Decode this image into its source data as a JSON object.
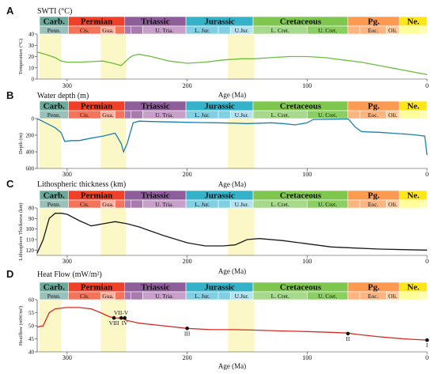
{
  "colors": {
    "carb": "#67a99a",
    "carb_sub": "#99c1b9",
    "perm": "#f04028",
    "perm_sub": "#f3745a",
    "perm_sub2": "#f9b4a3",
    "tria": "#8e5e9b",
    "tria_sub": "#c89fc9",
    "tria_sub2": "#a87aae",
    "jura": "#34b2c9",
    "jura_sub": "#80cfe2",
    "jura_sub2": "#b6e2ef",
    "cret": "#7fc64e",
    "cret_sub": "#a6d98b",
    "cret_sub2": "#8bce61",
    "pg": "#fd9a52",
    "pg_sub": "#fdb47e",
    "pg_sub2": "#fdcda1",
    "ne": "#ffe619",
    "ne_sub": "#ffff99",
    "highlight": "#fbf7c6",
    "swt_line": "#6cbf3d",
    "depth_line": "#1a7fb0",
    "litho_line": "#1a1a1a",
    "heat_line": "#d62a24"
  },
  "periods": [
    {
      "key": "carb",
      "label": "Carb.",
      "start": 323,
      "end": 299,
      "subs": [
        {
          "label": "Penn.",
          "start": 323,
          "end": 299,
          "color": "carb_sub"
        }
      ]
    },
    {
      "key": "perm",
      "label": "Permian",
      "start": 299,
      "end": 252,
      "subs": [
        {
          "label": "Cis.",
          "start": 299,
          "end": 272,
          "color": "perm_sub"
        },
        {
          "label": "Gua.",
          "start": 272,
          "end": 260,
          "color": "perm_sub2"
        },
        {
          "label": "",
          "start": 260,
          "end": 252,
          "color": "perm_sub"
        }
      ]
    },
    {
      "key": "tria",
      "label": "Triassic",
      "start": 252,
      "end": 201,
      "subs": [
        {
          "label": "",
          "start": 252,
          "end": 247,
          "color": "tria_sub2"
        },
        {
          "label": "",
          "start": 247,
          "end": 237,
          "color": "tria_sub2"
        },
        {
          "label": "U. Tria.",
          "start": 237,
          "end": 201,
          "color": "tria_sub"
        }
      ]
    },
    {
      "key": "jura",
      "label": "Jurassic",
      "start": 201,
      "end": 145,
      "subs": [
        {
          "label": "L. Jur.",
          "start": 201,
          "end": 174,
          "color": "jura_sub"
        },
        {
          "label": "",
          "start": 174,
          "end": 164,
          "color": "jura_sub"
        },
        {
          "label": "U.Jur.",
          "start": 164,
          "end": 145,
          "color": "jura_sub2"
        }
      ]
    },
    {
      "key": "cret",
      "label": "Cretaceous",
      "start": 145,
      "end": 66,
      "subs": [
        {
          "label": "L. Cret.",
          "start": 145,
          "end": 100,
          "color": "cret_sub"
        },
        {
          "label": "U. Cret.",
          "start": 100,
          "end": 66,
          "color": "cret_sub2"
        }
      ]
    },
    {
      "key": "pg",
      "label": "Pg.",
      "start": 66,
      "end": 23,
      "subs": [
        {
          "label": "",
          "start": 66,
          "end": 56,
          "color": "pg_sub"
        },
        {
          "label": "Eoc.",
          "start": 56,
          "end": 34,
          "color": "pg_sub"
        },
        {
          "label": "Oli.",
          "start": 34,
          "end": 23,
          "color": "pg_sub2"
        }
      ]
    },
    {
      "key": "ne",
      "label": "Ne.",
      "start": 23,
      "end": 0,
      "subs": [
        {
          "label": "",
          "start": 23,
          "end": 5,
          "color": "ne_sub"
        },
        {
          "label": "",
          "start": 5,
          "end": 2.6,
          "color": "ne_sub"
        },
        {
          "label": "",
          "start": 2.6,
          "end": 0,
          "color": "ne_sub"
        }
      ]
    }
  ],
  "highlights": [
    [
      323,
      305
    ],
    [
      272,
      251
    ],
    [
      166,
      144
    ]
  ],
  "age_ticks": [
    300,
    200,
    100,
    0
  ],
  "age_axis_label": "Age (Ma)",
  "chart_data": [
    {
      "panel": "A",
      "type": "line",
      "title": "SWTI (°C)",
      "ylabel": "Temperature (°C)",
      "xlim": [
        325,
        0
      ],
      "ylim": [
        0,
        40
      ],
      "yticks": [
        0,
        10,
        20,
        30,
        40
      ],
      "y_inverted": false,
      "series": [
        {
          "x": [
            325,
            318,
            310,
            305,
            300,
            290,
            280,
            270,
            262,
            255,
            252,
            248,
            245,
            240,
            230,
            215,
            200,
            185,
            170,
            155,
            145,
            130,
            115,
            100,
            85,
            70,
            55,
            40,
            25,
            10,
            0
          ],
          "y": [
            24,
            22,
            19,
            16,
            15,
            15,
            15.5,
            16,
            14,
            12,
            15,
            19,
            21,
            22,
            20,
            16,
            14,
            15,
            17,
            18,
            18,
            19,
            20,
            20,
            19,
            17,
            15,
            12,
            9,
            6,
            4
          ]
        }
      ]
    },
    {
      "panel": "B",
      "type": "line",
      "title": "Water depth (m)",
      "ylabel": "Depth (m)",
      "xlim": [
        325,
        0
      ],
      "ylim": [
        0,
        600
      ],
      "yticks": [
        0,
        200,
        400,
        600
      ],
      "y_inverted": true,
      "series": [
        {
          "x": [
            325,
            318,
            310,
            305,
            302,
            297,
            290,
            280,
            270,
            260,
            255,
            253,
            250,
            247,
            245,
            240,
            230,
            200,
            175,
            160,
            150,
            130,
            120,
            110,
            100,
            95,
            80,
            66,
            65,
            60,
            55,
            50,
            40,
            30,
            15,
            8,
            2,
            0
          ],
          "y": [
            0,
            50,
            110,
            170,
            275,
            265,
            265,
            235,
            210,
            175,
            300,
            400,
            300,
            150,
            50,
            30,
            35,
            45,
            50,
            55,
            60,
            50,
            60,
            75,
            50,
            10,
            8,
            5,
            15,
            100,
            155,
            160,
            165,
            175,
            190,
            200,
            210,
            440
          ]
        }
      ]
    },
    {
      "panel": "C",
      "type": "line",
      "title": "Lithospheric thickness (km)",
      "ylabel": "Lithosphere Thickness (km)",
      "xlim": [
        325,
        0
      ],
      "ylim": [
        80,
        125
      ],
      "yticks": [
        80,
        90,
        100,
        110,
        120
      ],
      "y_inverted": true,
      "series": [
        {
          "x": [
            325,
            320,
            315,
            310,
            305,
            300,
            295,
            290,
            280,
            270,
            260,
            250,
            240,
            220,
            200,
            185,
            170,
            160,
            150,
            140,
            120,
            100,
            80,
            60,
            40,
            20,
            0
          ],
          "y": [
            123,
            110,
            90,
            85,
            85,
            86,
            89,
            92,
            97,
            95,
            93,
            95,
            98,
            106,
            113,
            116,
            116,
            115,
            110,
            109,
            111,
            114,
            117,
            118,
            119,
            119.5,
            120
          ]
        }
      ]
    },
    {
      "panel": "D",
      "type": "line",
      "title": "Heat Flow (mW/m²)",
      "ylabel": "Heatflow (mW/m²)",
      "xlim": [
        325,
        0
      ],
      "ylim": [
        40,
        60
      ],
      "yticks": [
        40,
        45,
        50,
        55,
        60
      ],
      "y_inverted": false,
      "series": [
        {
          "x": [
            325,
            320,
            315,
            310,
            300,
            290,
            280,
            272,
            265,
            260,
            255,
            250,
            240,
            220,
            200,
            180,
            160,
            140,
            120,
            100,
            80,
            66,
            60,
            40,
            20,
            0
          ],
          "y": [
            49.5,
            50,
            55,
            56.5,
            57,
            57,
            56.5,
            55,
            53.5,
            53,
            53,
            52,
            51,
            50,
            49,
            48.5,
            48.5,
            48.3,
            48,
            47.8,
            47.5,
            47.2,
            46.8,
            45.8,
            45,
            44.5
          ]
        }
      ],
      "points": [
        {
          "label": "VIII",
          "x": 261,
          "y": 53,
          "pos": "below"
        },
        {
          "label": "VII-V",
          "x": 255,
          "y": 53,
          "pos": "above"
        },
        {
          "label": "IV",
          "x": 252,
          "y": 53,
          "pos": "below"
        },
        {
          "label": "III",
          "x": 200,
          "y": 49,
          "pos": "below"
        },
        {
          "label": "II",
          "x": 66,
          "y": 47,
          "pos": "below"
        },
        {
          "label": "I",
          "x": 0,
          "y": 44.5,
          "pos": "below"
        }
      ]
    }
  ]
}
